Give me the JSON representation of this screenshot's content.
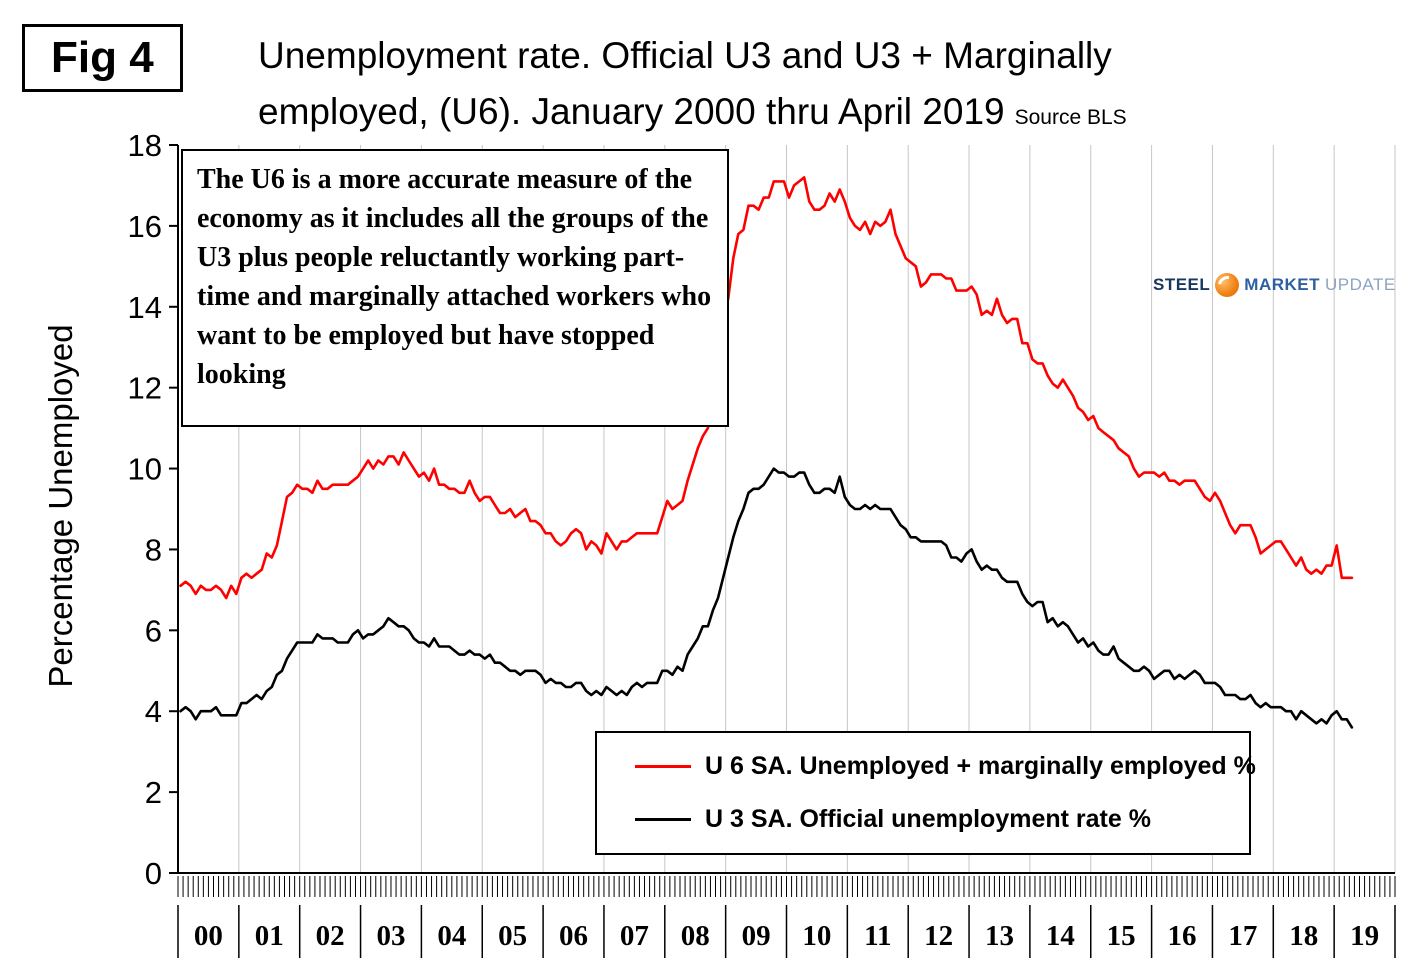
{
  "fig_label": "Fig 4",
  "title_line1": "Unemployment rate. Official U3 and U3 + Marginally",
  "title_line2": "employed, (U6). January 2000 thru April 2019",
  "source_label": "Source BLS",
  "y_axis_title": "Percentage Unemployed",
  "annotation": "The U6 is a more accurate measure of the economy as it includes all the groups of the U3 plus people reluctantly working part-time and marginally attached workers who want to be employed but have stopped looking",
  "legend": {
    "u6_label": "U 6 SA. Unemployed + marginally employed %",
    "u3_label": "U 3 SA. Official unemployment rate %"
  },
  "logo": {
    "word1": "STEEL",
    "word2": "MARKET",
    "word3": "UPDATE"
  },
  "colors": {
    "u6": "#ff0000",
    "u3": "#000000",
    "grid": "#c6c6c6",
    "axis": "#000000"
  },
  "chart_data": {
    "type": "line",
    "title": "Unemployment rate. Official U3 and U3 + Marginally employed, (U6). January 2000 thru April 2019",
    "source": "BLS",
    "frequency": "monthly",
    "x_start": "2000-01",
    "x_end": "2019-04",
    "xlabel": "",
    "ylabel": "Percentage Unemployed",
    "ylim": [
      0,
      18
    ],
    "y_ticks": [
      0,
      2,
      4,
      6,
      8,
      10,
      12,
      14,
      16,
      18
    ],
    "x_tick_labels": [
      "00",
      "01",
      "02",
      "03",
      "04",
      "05",
      "06",
      "07",
      "08",
      "09",
      "10",
      "11",
      "12",
      "13",
      "14",
      "15",
      "16",
      "17",
      "18",
      "19"
    ],
    "grid": "vertical-yearly",
    "legend_position": "inside-bottom",
    "series": [
      {
        "name": "U 6 SA. Unemployed + marginally employed %",
        "color": "#ff0000",
        "values": [
          7.1,
          7.2,
          7.1,
          6.9,
          7.1,
          7.0,
          7.0,
          7.1,
          7.0,
          6.8,
          7.1,
          6.9,
          7.3,
          7.4,
          7.3,
          7.4,
          7.5,
          7.9,
          7.8,
          8.1,
          8.7,
          9.3,
          9.4,
          9.6,
          9.5,
          9.5,
          9.4,
          9.7,
          9.5,
          9.5,
          9.6,
          9.6,
          9.6,
          9.6,
          9.7,
          9.8,
          10.0,
          10.2,
          10.0,
          10.2,
          10.1,
          10.3,
          10.3,
          10.1,
          10.4,
          10.2,
          10.0,
          9.8,
          9.9,
          9.7,
          10.0,
          9.6,
          9.6,
          9.5,
          9.5,
          9.4,
          9.4,
          9.7,
          9.4,
          9.2,
          9.3,
          9.3,
          9.1,
          8.9,
          8.9,
          9.0,
          8.8,
          8.9,
          9.0,
          8.7,
          8.7,
          8.6,
          8.4,
          8.4,
          8.2,
          8.1,
          8.2,
          8.4,
          8.5,
          8.4,
          8.0,
          8.2,
          8.1,
          7.9,
          8.4,
          8.2,
          8.0,
          8.2,
          8.2,
          8.3,
          8.4,
          8.4,
          8.4,
          8.4,
          8.4,
          8.8,
          9.2,
          9.0,
          9.1,
          9.2,
          9.7,
          10.1,
          10.5,
          10.8,
          11.0,
          11.8,
          12.6,
          13.6,
          14.2,
          15.2,
          15.8,
          15.9,
          16.5,
          16.5,
          16.4,
          16.7,
          16.7,
          17.1,
          17.1,
          17.1,
          16.7,
          17.0,
          17.1,
          17.2,
          16.6,
          16.4,
          16.4,
          16.5,
          16.8,
          16.6,
          16.9,
          16.6,
          16.2,
          16.0,
          15.9,
          16.1,
          15.8,
          16.1,
          16.0,
          16.1,
          16.4,
          15.8,
          15.5,
          15.2,
          15.1,
          15.0,
          14.5,
          14.6,
          14.8,
          14.8,
          14.8,
          14.7,
          14.7,
          14.4,
          14.4,
          14.4,
          14.5,
          14.3,
          13.8,
          13.9,
          13.8,
          14.2,
          13.8,
          13.6,
          13.7,
          13.7,
          13.1,
          13.1,
          12.7,
          12.6,
          12.6,
          12.3,
          12.1,
          12.0,
          12.2,
          12.0,
          11.8,
          11.5,
          11.4,
          11.2,
          11.3,
          11.0,
          10.9,
          10.8,
          10.7,
          10.5,
          10.4,
          10.3,
          10.0,
          9.8,
          9.9,
          9.9,
          9.9,
          9.8,
          9.9,
          9.7,
          9.7,
          9.6,
          9.7,
          9.7,
          9.7,
          9.5,
          9.3,
          9.2,
          9.4,
          9.2,
          8.9,
          8.6,
          8.4,
          8.6,
          8.6,
          8.6,
          8.3,
          7.9,
          8.0,
          8.1,
          8.2,
          8.2,
          8.0,
          7.8,
          7.6,
          7.8,
          7.5,
          7.4,
          7.5,
          7.4,
          7.6,
          7.6,
          8.1,
          7.3,
          7.3,
          7.3
        ]
      },
      {
        "name": "U 3 SA. Official unemployment rate %",
        "color": "#000000",
        "values": [
          4.0,
          4.1,
          4.0,
          3.8,
          4.0,
          4.0,
          4.0,
          4.1,
          3.9,
          3.9,
          3.9,
          3.9,
          4.2,
          4.2,
          4.3,
          4.4,
          4.3,
          4.5,
          4.6,
          4.9,
          5.0,
          5.3,
          5.5,
          5.7,
          5.7,
          5.7,
          5.7,
          5.9,
          5.8,
          5.8,
          5.8,
          5.7,
          5.7,
          5.7,
          5.9,
          6.0,
          5.8,
          5.9,
          5.9,
          6.0,
          6.1,
          6.3,
          6.2,
          6.1,
          6.1,
          6.0,
          5.8,
          5.7,
          5.7,
          5.6,
          5.8,
          5.6,
          5.6,
          5.6,
          5.5,
          5.4,
          5.4,
          5.5,
          5.4,
          5.4,
          5.3,
          5.4,
          5.2,
          5.2,
          5.1,
          5.0,
          5.0,
          4.9,
          5.0,
          5.0,
          5.0,
          4.9,
          4.7,
          4.8,
          4.7,
          4.7,
          4.6,
          4.6,
          4.7,
          4.7,
          4.5,
          4.4,
          4.5,
          4.4,
          4.6,
          4.5,
          4.4,
          4.5,
          4.4,
          4.6,
          4.7,
          4.6,
          4.7,
          4.7,
          4.7,
          5.0,
          5.0,
          4.9,
          5.1,
          5.0,
          5.4,
          5.6,
          5.8,
          6.1,
          6.1,
          6.5,
          6.8,
          7.3,
          7.8,
          8.3,
          8.7,
          9.0,
          9.4,
          9.5,
          9.5,
          9.6,
          9.8,
          10.0,
          9.9,
          9.9,
          9.8,
          9.8,
          9.9,
          9.9,
          9.6,
          9.4,
          9.4,
          9.5,
          9.5,
          9.4,
          9.8,
          9.3,
          9.1,
          9.0,
          9.0,
          9.1,
          9.0,
          9.1,
          9.0,
          9.0,
          9.0,
          8.8,
          8.6,
          8.5,
          8.3,
          8.3,
          8.2,
          8.2,
          8.2,
          8.2,
          8.2,
          8.1,
          7.8,
          7.8,
          7.7,
          7.9,
          8.0,
          7.7,
          7.5,
          7.6,
          7.5,
          7.5,
          7.3,
          7.2,
          7.2,
          7.2,
          6.9,
          6.7,
          6.6,
          6.7,
          6.7,
          6.2,
          6.3,
          6.1,
          6.2,
          6.1,
          5.9,
          5.7,
          5.8,
          5.6,
          5.7,
          5.5,
          5.4,
          5.4,
          5.6,
          5.3,
          5.2,
          5.1,
          5.0,
          5.0,
          5.1,
          5.0,
          4.8,
          4.9,
          5.0,
          5.0,
          4.8,
          4.9,
          4.8,
          4.9,
          5.0,
          4.9,
          4.7,
          4.7,
          4.7,
          4.6,
          4.4,
          4.4,
          4.4,
          4.3,
          4.3,
          4.4,
          4.2,
          4.1,
          4.2,
          4.1,
          4.1,
          4.1,
          4.0,
          4.0,
          3.8,
          4.0,
          3.9,
          3.8,
          3.7,
          3.8,
          3.7,
          3.9,
          4.0,
          3.8,
          3.8,
          3.6
        ]
      }
    ]
  }
}
